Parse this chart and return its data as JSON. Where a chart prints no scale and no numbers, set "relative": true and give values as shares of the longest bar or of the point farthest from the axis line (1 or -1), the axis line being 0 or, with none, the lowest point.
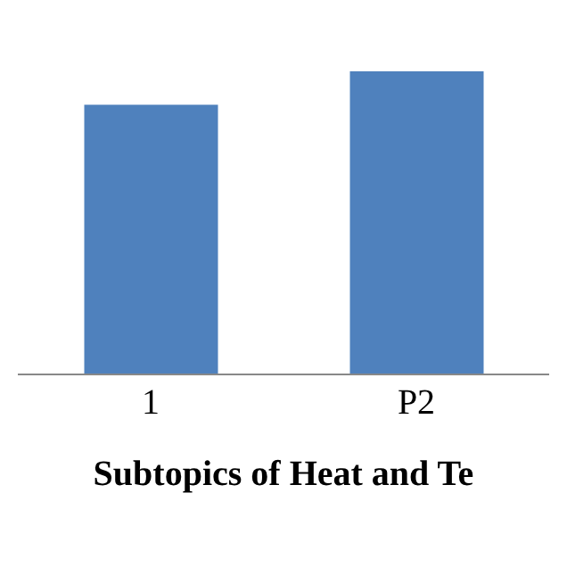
{
  "chart_data": {
    "type": "bar",
    "relative": true,
    "categories": [
      "1",
      "P2"
    ],
    "values": [
      0.89,
      1
    ],
    "color": "#4f81bd",
    "xlabel": "Subtopics of Heat and Te",
    "grid": false,
    "legend": false
  }
}
